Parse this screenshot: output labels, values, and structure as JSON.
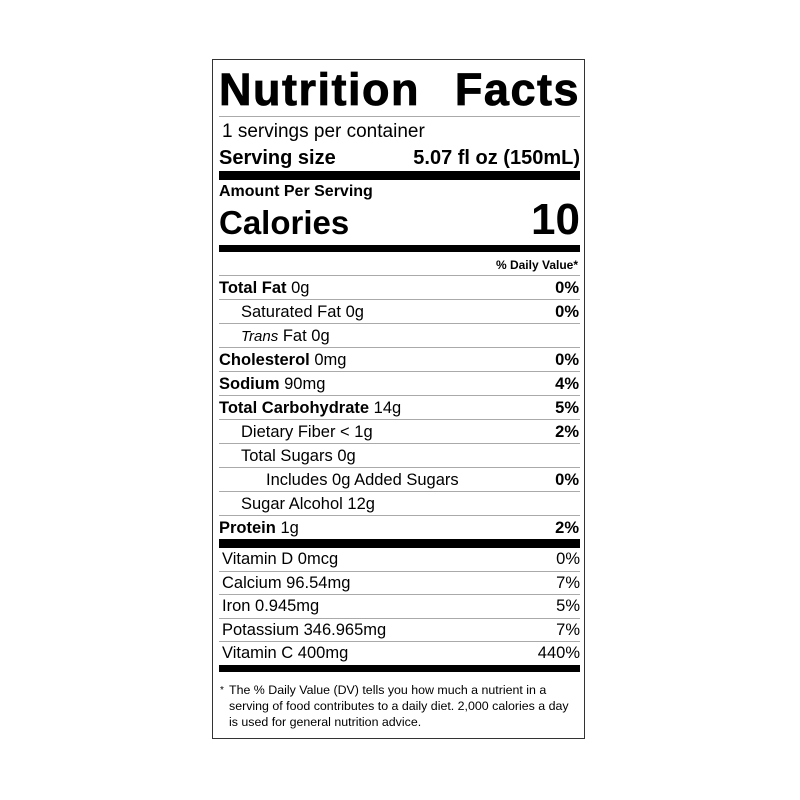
{
  "title": "Nutrition Facts",
  "servings_per_container": "1 servings per container",
  "serving_size": {
    "label": "Serving size",
    "value": "5.07 fl oz (150mL)"
  },
  "amount_per_serving": "Amount Per Serving",
  "calories": {
    "label": "Calories",
    "value": "10"
  },
  "daily_value_header": "% Daily Value*",
  "nutrients": [
    {
      "name": "Total Fat",
      "amount": "0g",
      "dv": "0%"
    },
    {
      "name": "Saturated Fat",
      "amount": "0g",
      "dv": "0%"
    },
    {
      "name": "Trans",
      "suffix": "Fat",
      "amount": "0g",
      "dv": ""
    },
    {
      "name": "Cholesterol",
      "amount": "0mg",
      "dv": "0%"
    },
    {
      "name": "Sodium",
      "amount": "90mg",
      "dv": "4%"
    },
    {
      "name": "Total Carbohydrate",
      "amount": "14g",
      "dv": "5%"
    },
    {
      "name": "Dietary Fiber",
      "amount": "< 1g",
      "dv": "2%"
    },
    {
      "name": "Total Sugars",
      "amount": "0g",
      "dv": ""
    },
    {
      "name": "Includes 0g Added Sugars",
      "amount": "",
      "dv": "0%"
    },
    {
      "name": "Sugar Alcohol",
      "amount": "12g",
      "dv": ""
    },
    {
      "name": "Protein",
      "amount": "1g",
      "dv": "2%"
    }
  ],
  "vitamins": [
    {
      "text": "Vitamin D 0mcg",
      "dv": "0%"
    },
    {
      "text": "Calcium 96.54mg",
      "dv": "7%"
    },
    {
      "text": "Iron 0.945mg",
      "dv": "5%"
    },
    {
      "text": "Potassium 346.965mg",
      "dv": "7%"
    },
    {
      "text": "Vitamin C 400mg",
      "dv": "440%"
    }
  ],
  "footnote": {
    "star": "*",
    "text": "The % Daily Value (DV) tells you how much a nutrient in a serving of food contributes to a daily diet. 2,000 calories a day is used for general nutrition advice."
  }
}
